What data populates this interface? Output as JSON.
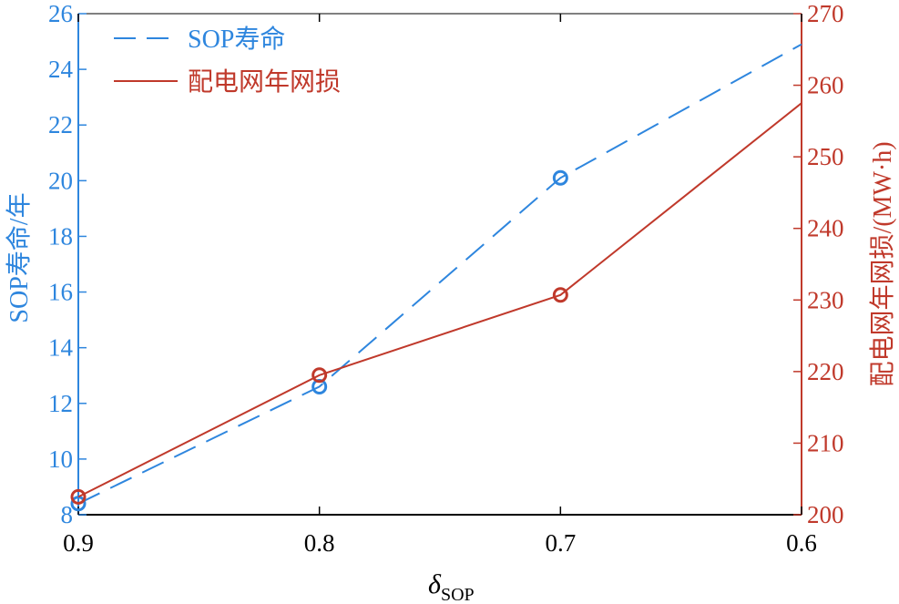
{
  "chart_data": {
    "type": "line",
    "x": [
      0.9,
      0.8,
      0.7,
      0.6
    ],
    "x_reversed": true,
    "xlim": [
      0.9,
      0.6
    ],
    "xticks": [
      "0.9",
      "0.8",
      "0.7",
      "0.6"
    ],
    "xlabel": {
      "symbol": "δ",
      "subscript": "SOP"
    },
    "left_axis": {
      "label": "SOP寿命/年",
      "ylim": [
        8,
        26
      ],
      "ticks": [
        "8",
        "10",
        "12",
        "14",
        "16",
        "18",
        "20",
        "22",
        "24",
        "26"
      ],
      "color": "#2E86DE"
    },
    "right_axis": {
      "label": "配电网年网损/(MW·h)",
      "ylim": [
        200,
        270
      ],
      "ticks": [
        "200",
        "210",
        "220",
        "230",
        "240",
        "250",
        "260",
        "270"
      ],
      "color": "#C0392B"
    },
    "series": [
      {
        "name": "SOP寿命",
        "axis": "left",
        "style": "dashed",
        "color": "#2E86DE",
        "x": [
          0.9,
          0.8,
          0.7,
          0.6
        ],
        "values": [
          8.4,
          12.6,
          20.1,
          24.9
        ],
        "markers": [
          true,
          true,
          true,
          false
        ]
      },
      {
        "name": "配电网年网损",
        "axis": "right",
        "style": "solid",
        "color": "#C0392B",
        "x": [
          0.9,
          0.8,
          0.7,
          0.6
        ],
        "values": [
          202.5,
          219.5,
          230.7,
          257.5
        ],
        "markers": [
          true,
          true,
          true,
          false
        ]
      }
    ],
    "legend": "top-left",
    "grid": false
  }
}
